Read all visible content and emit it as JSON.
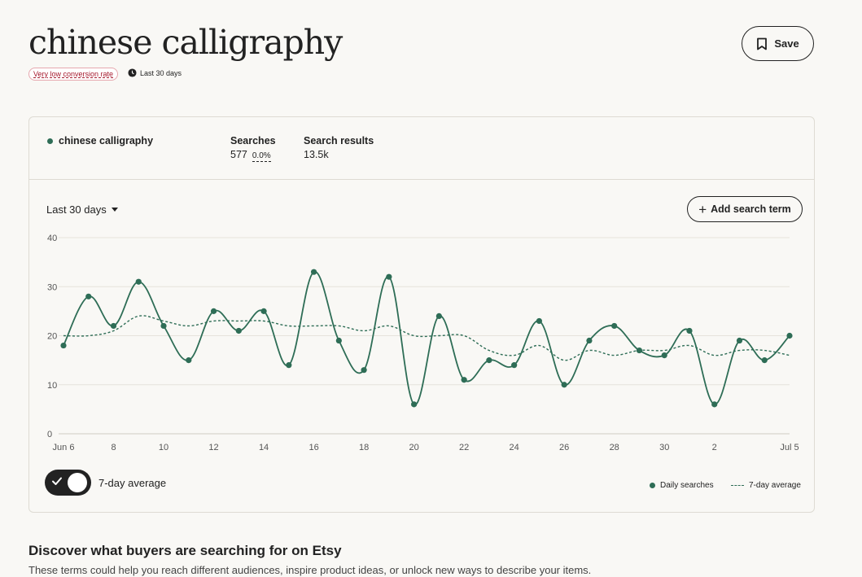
{
  "header": {
    "title": "chinese calligraphy",
    "conversion_badge": "Very low conversion rate",
    "period": "Last 30 days",
    "save_label": "Save"
  },
  "card": {
    "term": "chinese calligraphy",
    "searches_label": "Searches",
    "searches_value": "577",
    "searches_change": "0.0%",
    "results_label": "Search results",
    "results_value": "13.5k",
    "range_label": "Last 30 days",
    "add_term_label": "Add search term",
    "toggle_label": "7-day average",
    "toggle_on": true,
    "legend_daily": "Daily searches",
    "legend_avg": "7-day average"
  },
  "discover": {
    "title": "Discover what buyers are searching for on Etsy",
    "subtitle": "These terms could help you reach different audiences, inspire product ideas, or unlock new ways to describe your items."
  },
  "colors": {
    "series": "#2e6d56",
    "grid": "#e6e3dc",
    "badge_text": "#a61a2e"
  },
  "chart_data": {
    "type": "line",
    "x_tick_labels": [
      "Jun 6",
      "8",
      "10",
      "12",
      "14",
      "16",
      "18",
      "20",
      "22",
      "24",
      "26",
      "28",
      "30",
      "2",
      "Jul 5"
    ],
    "x_tick_index": [
      0,
      2,
      4,
      6,
      8,
      10,
      12,
      14,
      16,
      18,
      20,
      22,
      24,
      26,
      29
    ],
    "y_ticks": [
      0,
      10,
      20,
      30,
      40
    ],
    "ylim": [
      0,
      40
    ],
    "grid": true,
    "legend_position": "bottom-right",
    "series": [
      {
        "name": "Daily searches",
        "style": "solid-with-points",
        "values": [
          18,
          28,
          22,
          31,
          22,
          15,
          25,
          21,
          25,
          14,
          33,
          19,
          13,
          32,
          6,
          24,
          11,
          15,
          14,
          23,
          10,
          19,
          22,
          17,
          16,
          21,
          6,
          19,
          15,
          20
        ]
      },
      {
        "name": "7-day average",
        "style": "dashed",
        "values": [
          20,
          20,
          21,
          24,
          23,
          22,
          23,
          23,
          23,
          22,
          22,
          22,
          21,
          22,
          20,
          20,
          20,
          17,
          16,
          18,
          15,
          17,
          16,
          17,
          17,
          18,
          16,
          17,
          17,
          16
        ]
      }
    ]
  }
}
